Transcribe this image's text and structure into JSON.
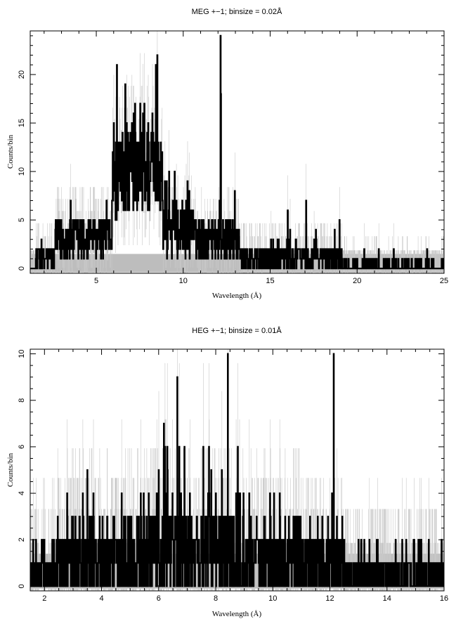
{
  "chart_data": [
    {
      "type": "line",
      "title": "MEG +−1; binsize = 0.02Å",
      "xlabel": "Wavelength (Å)",
      "ylabel": "Counts/bin",
      "xlim": [
        1.2,
        25
      ],
      "ylim": [
        -0.5,
        24.5
      ],
      "xticks": [
        5,
        10,
        15,
        20,
        25
      ],
      "yticks": [
        0,
        5,
        10,
        15,
        20
      ],
      "x_minor_step": 1,
      "y_minor_step": 1,
      "grid": false,
      "background_band": {
        "y_from": -0.4,
        "y_to": 1.5,
        "color": "#bdbdbd"
      },
      "colors": {
        "data": "#000000",
        "errors": "#c8c8c8",
        "band": "#bdbdbd"
      },
      "series": [
        {
          "style": "step",
          "binsize": 0.02,
          "segments": [
            {
              "x_from": 1.5,
              "x_to": 2.6,
              "base": 1,
              "spread": 1.5
            },
            {
              "x_from": 2.6,
              "x_to": 5.9,
              "base": 3,
              "spread": 2.5
            },
            {
              "x_from": 5.9,
              "x_to": 6.6,
              "base": 9,
              "spread": 4
            },
            {
              "x_from": 6.6,
              "x_to": 8.8,
              "base": 10,
              "spread": 4.5
            },
            {
              "x_from": 8.8,
              "x_to": 10.6,
              "base": 4,
              "spread": 3
            },
            {
              "x_from": 10.6,
              "x_to": 13.2,
              "base": 3,
              "spread": 2.5
            },
            {
              "x_from": 13.2,
              "x_to": 19.1,
              "base": 1,
              "spread": 1.4
            },
            {
              "x_from": 19.1,
              "x_to": 25,
              "base": 0,
              "spread": 0.9
            }
          ],
          "peaks": [
            {
              "x": 6.18,
              "y": 21
            },
            {
              "x": 6.65,
              "y": 19
            },
            {
              "x": 6.74,
              "y": 15
            },
            {
              "x": 6.95,
              "y": 14
            },
            {
              "x": 7.17,
              "y": 12
            },
            {
              "x": 7.76,
              "y": 17
            },
            {
              "x": 7.98,
              "y": 15
            },
            {
              "x": 8.21,
              "y": 16
            },
            {
              "x": 8.42,
              "y": 21
            },
            {
              "x": 8.5,
              "y": 22
            },
            {
              "x": 9.17,
              "y": 10
            },
            {
              "x": 10.24,
              "y": 9
            },
            {
              "x": 12.13,
              "y": 24
            },
            {
              "x": 12.16,
              "y": 18
            },
            {
              "x": 16.0,
              "y": 6
            },
            {
              "x": 17.05,
              "y": 7
            },
            {
              "x": 18.97,
              "y": 5
            },
            {
              "x": 22.1,
              "y": 2
            }
          ]
        }
      ]
    },
    {
      "type": "line",
      "title": "HEG +−1; binsize = 0.01Å",
      "xlabel": "Wavelength (Å)",
      "ylabel": "Counts/bin",
      "xlim": [
        1.5,
        16
      ],
      "ylim": [
        -0.2,
        10.2
      ],
      "xticks": [
        2,
        4,
        6,
        8,
        10,
        12,
        14,
        16
      ],
      "yticks": [
        0,
        2,
        4,
        6,
        8,
        10
      ],
      "x_minor_step": 0.5,
      "y_minor_step": 0.5,
      "grid": false,
      "background_band": {
        "y_from": -0.1,
        "y_to": 1.4,
        "color": "#bdbdbd"
      },
      "colors": {
        "data": "#000000",
        "errors": "#c8c8c8",
        "band": "#bdbdbd"
      },
      "series": [
        {
          "style": "step",
          "binsize": 0.01,
          "segments": [
            {
              "x_from": 1.5,
              "x_to": 2.4,
              "base": 0.5,
              "spread": 1.2
            },
            {
              "x_from": 2.4,
              "x_to": 5.6,
              "base": 1,
              "spread": 1.8
            },
            {
              "x_from": 5.6,
              "x_to": 9.0,
              "base": 1.5,
              "spread": 2.2
            },
            {
              "x_from": 9.0,
              "x_to": 12.5,
              "base": 1,
              "spread": 1.6
            },
            {
              "x_from": 12.5,
              "x_to": 16,
              "base": 0.3,
              "spread": 1.0
            }
          ],
          "peaks": [
            {
              "x": 2.8,
              "y": 3
            },
            {
              "x": 3.5,
              "y": 5
            },
            {
              "x": 4.7,
              "y": 4
            },
            {
              "x": 6.0,
              "y": 5
            },
            {
              "x": 6.18,
              "y": 7
            },
            {
              "x": 6.3,
              "y": 6
            },
            {
              "x": 6.65,
              "y": 9
            },
            {
              "x": 7.76,
              "y": 6
            },
            {
              "x": 8.21,
              "y": 5
            },
            {
              "x": 8.42,
              "y": 10
            },
            {
              "x": 9.17,
              "y": 4
            },
            {
              "x": 10.24,
              "y": 4
            },
            {
              "x": 12.13,
              "y": 10
            },
            {
              "x": 13.1,
              "y": 2
            },
            {
              "x": 15.2,
              "y": 2
            }
          ]
        }
      ]
    }
  ]
}
